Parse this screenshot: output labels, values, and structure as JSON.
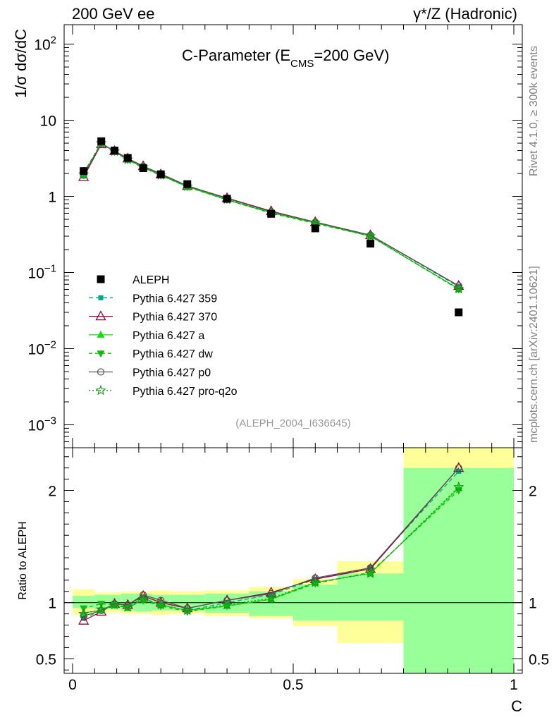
{
  "header": {
    "left_label": "200 GeV ee",
    "right_label": "γ*/Z (Hadronic)",
    "side_label_top": "Rivet 4.1.0, ≥ 300k events",
    "side_label_bottom": "mcplots.cern.ch [arXiv:2401.10621]"
  },
  "chart_data": [
    {
      "type": "line",
      "panel": "main",
      "title": "C-Parameter (E_CMS=200 GeV)",
      "title_main": "C-Parameter (E",
      "title_sub": "CMS",
      "title_rest": "=200 GeV)",
      "ylabel": "1/σ  dσ/dC",
      "yscale": "log",
      "xlim": [
        0,
        1
      ],
      "ylim": [
        0.0005,
        180
      ],
      "yticks": [
        {
          "v": 0.001,
          "base": "10",
          "exp": "−3"
        },
        {
          "v": 0.01,
          "base": "10",
          "exp": "−2"
        },
        {
          "v": 0.1,
          "base": "10",
          "exp": "−1"
        },
        {
          "v": 1,
          "base": "1",
          "exp": ""
        },
        {
          "v": 10,
          "base": "10",
          "exp": ""
        },
        {
          "v": 100,
          "base": "10",
          "exp": "2"
        }
      ],
      "watermark": "(ALEPH_2004_I636645)",
      "bins": [
        {
          "lo": 0.0,
          "hi": 0.05
        },
        {
          "lo": 0.05,
          "hi": 0.08
        },
        {
          "lo": 0.08,
          "hi": 0.11
        },
        {
          "lo": 0.11,
          "hi": 0.14
        },
        {
          "lo": 0.14,
          "hi": 0.18
        },
        {
          "lo": 0.18,
          "hi": 0.22
        },
        {
          "lo": 0.22,
          "hi": 0.3
        },
        {
          "lo": 0.3,
          "hi": 0.4
        },
        {
          "lo": 0.4,
          "hi": 0.5
        },
        {
          "lo": 0.5,
          "hi": 0.6
        },
        {
          "lo": 0.6,
          "hi": 0.75
        },
        {
          "lo": 0.75,
          "hi": 1.0
        }
      ],
      "x": [
        0.025,
        0.065,
        0.095,
        0.125,
        0.16,
        0.2,
        0.26,
        0.35,
        0.45,
        0.55,
        0.675,
        0.875
      ],
      "data": {
        "name": "ALEPH",
        "values": [
          2.15,
          5.3,
          4.0,
          3.2,
          2.35,
          1.95,
          1.45,
          0.93,
          0.59,
          0.38,
          0.24,
          0.03
        ]
      },
      "series": [
        {
          "name": "Pythia 6.427 359",
          "color": "#00aa88",
          "dash": "6,4",
          "marker": "square-small",
          "values": [
            1.85,
            4.9,
            3.95,
            3.1,
            2.45,
            1.92,
            1.35,
            0.93,
            0.63,
            0.46,
            0.31,
            0.065
          ]
        },
        {
          "name": "Pythia 6.427 370",
          "color": "#99003a",
          "dash": "",
          "marker": "triangle-open",
          "values": [
            1.8,
            4.85,
            3.95,
            3.15,
            2.5,
            1.95,
            1.37,
            0.95,
            0.64,
            0.46,
            0.31,
            0.067
          ]
        },
        {
          "name": "Pythia 6.427 a",
          "color": "#11dd11",
          "dash": "",
          "marker": "triangle-filled",
          "values": [
            1.95,
            4.95,
            3.9,
            3.05,
            2.4,
            1.9,
            1.34,
            0.9,
            0.61,
            0.45,
            0.3,
            0.061
          ]
        },
        {
          "name": "Pythia 6.427 dw",
          "color": "#11bb11",
          "dash": "5,4",
          "marker": "triangle-down",
          "values": [
            2.05,
            5.05,
            3.85,
            3.0,
            2.38,
            1.88,
            1.33,
            0.9,
            0.6,
            0.44,
            0.3,
            0.06
          ]
        },
        {
          "name": "Pythia 6.427 p0",
          "color": "#555555",
          "dash": "",
          "marker": "circle-open",
          "values": [
            1.9,
            4.95,
            3.95,
            3.1,
            2.5,
            1.98,
            1.38,
            0.94,
            0.63,
            0.46,
            0.31,
            0.067
          ]
        },
        {
          "name": "Pythia 6.427 pro-q2o",
          "color": "#119911",
          "dash": "2,3",
          "marker": "star-open",
          "values": [
            1.95,
            5.0,
            3.9,
            3.05,
            2.42,
            1.9,
            1.35,
            0.91,
            0.61,
            0.45,
            0.3,
            0.061
          ]
        }
      ]
    },
    {
      "type": "line",
      "panel": "ratio",
      "ylabel": "Ratio to ALEPH",
      "xlabel": "C",
      "xlim": [
        0,
        1
      ],
      "ylim": [
        0.37,
        2.38
      ],
      "xticks": [
        {
          "v": 0,
          "label": "0"
        },
        {
          "v": 0.5,
          "label": "0.5"
        },
        {
          "v": 1,
          "label": "1"
        }
      ],
      "yticks": [
        {
          "v": 0.5,
          "label": "0.5"
        },
        {
          "v": 1,
          "label": "1"
        },
        {
          "v": 2,
          "label": "2"
        }
      ],
      "band_inner": [
        [
          0.95,
          1.06
        ],
        [
          0.94,
          1.07
        ],
        [
          0.94,
          1.07
        ],
        [
          0.93,
          1.08
        ],
        [
          0.92,
          1.08
        ],
        [
          0.93,
          1.07
        ],
        [
          0.93,
          1.07
        ],
        [
          0.91,
          1.08
        ],
        [
          0.88,
          1.1
        ],
        [
          0.84,
          1.16
        ],
        [
          0.84,
          1.26
        ],
        [
          0.37,
          2.2
        ]
      ],
      "band_outer": [
        [
          0.89,
          1.12
        ],
        [
          0.91,
          1.09
        ],
        [
          0.91,
          1.09
        ],
        [
          0.9,
          1.1
        ],
        [
          0.9,
          1.1
        ],
        [
          0.89,
          1.11
        ],
        [
          0.9,
          1.1
        ],
        [
          0.88,
          1.11
        ],
        [
          0.86,
          1.14
        ],
        [
          0.79,
          1.21
        ],
        [
          0.64,
          1.37
        ],
        [
          0.37,
          2.38
        ]
      ],
      "series": [
        {
          "name": "Pythia 6.427 359",
          "values": [
            0.86,
            0.93,
            0.99,
            0.97,
            1.04,
            0.98,
            0.93,
            1.0,
            1.07,
            1.21,
            1.31,
            2.17
          ]
        },
        {
          "name": "Pythia 6.427 370",
          "values": [
            0.84,
            0.92,
            0.99,
            0.98,
            1.06,
            1.0,
            0.95,
            1.02,
            1.09,
            1.21,
            1.3,
            2.2
          ]
        },
        {
          "name": "Pythia 6.427 a",
          "values": [
            0.91,
            0.93,
            0.98,
            0.95,
            1.03,
            0.98,
            0.93,
            0.97,
            1.03,
            1.18,
            1.26,
            2.02
          ]
        },
        {
          "name": "Pythia 6.427 dw",
          "values": [
            0.95,
            0.99,
            0.98,
            0.96,
            1.02,
            0.97,
            0.92,
            0.97,
            1.03,
            1.17,
            1.27,
            2.0
          ]
        },
        {
          "name": "Pythia 6.427 p0",
          "values": [
            0.88,
            0.93,
            0.99,
            0.98,
            1.07,
            1.02,
            0.95,
            1.02,
            1.08,
            1.22,
            1.31,
            2.2
          ]
        },
        {
          "name": "Pythia 6.427 pro-q2o",
          "values": [
            0.9,
            0.94,
            0.98,
            0.96,
            1.03,
            0.98,
            0.93,
            0.98,
            1.04,
            1.18,
            1.26,
            2.03
          ]
        }
      ]
    }
  ]
}
